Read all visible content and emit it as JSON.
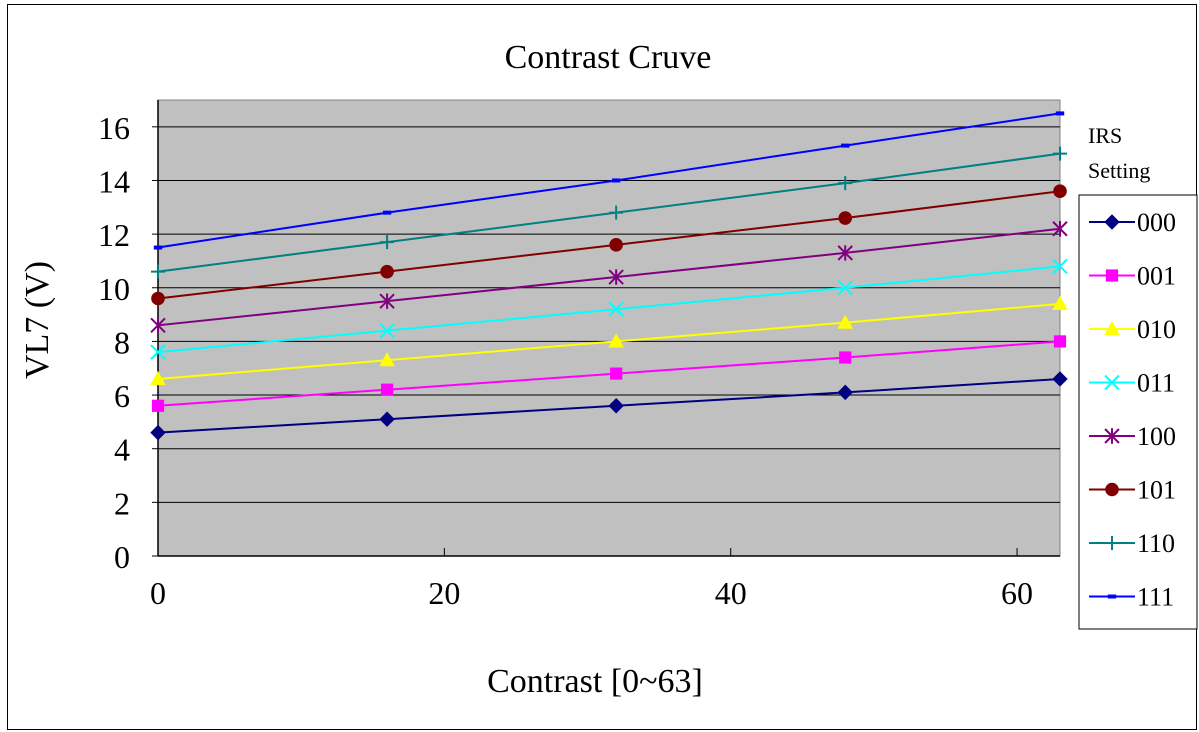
{
  "chart_data": {
    "type": "line",
    "title": "Contrast Cruve",
    "xlabel": "Contrast [0~63]",
    "ylabel": "VL7 (V)",
    "xlim": [
      0,
      63
    ],
    "ylim": [
      0,
      17
    ],
    "xticks": [
      "0",
      "20",
      "40",
      "60"
    ],
    "yticks": [
      "0",
      "2",
      "4",
      "6",
      "8",
      "10",
      "12",
      "14",
      "16"
    ],
    "grid": "horizontal",
    "plot_background": "#c0c0c0",
    "legend": {
      "title_line1": "IRS",
      "title_line2": "Setting",
      "placement": "right"
    },
    "x": [
      0,
      16,
      32,
      48,
      63
    ],
    "series": [
      {
        "name": "000",
        "values": [
          4.6,
          5.1,
          5.6,
          6.1,
          6.6
        ],
        "color": "#000080",
        "marker": "diamond"
      },
      {
        "name": "001",
        "values": [
          5.6,
          6.2,
          6.8,
          7.4,
          8.0
        ],
        "color": "#ff00ff",
        "marker": "square"
      },
      {
        "name": "010",
        "values": [
          6.6,
          7.3,
          8.0,
          8.7,
          9.4
        ],
        "color": "#ffff00",
        "marker": "triangle"
      },
      {
        "name": "011",
        "values": [
          7.6,
          8.4,
          9.2,
          10.0,
          10.8
        ],
        "color": "#00ffff",
        "marker": "x"
      },
      {
        "name": "100",
        "values": [
          8.6,
          9.5,
          10.4,
          11.3,
          12.2
        ],
        "color": "#800080",
        "marker": "star"
      },
      {
        "name": "101",
        "values": [
          9.6,
          10.6,
          11.6,
          12.6,
          13.6
        ],
        "color": "#800000",
        "marker": "circle"
      },
      {
        "name": "110",
        "values": [
          10.6,
          11.7,
          12.8,
          13.9,
          15.0
        ],
        "color": "#008080",
        "marker": "plus"
      },
      {
        "name": "111",
        "values": [
          11.5,
          12.8,
          14.0,
          15.3,
          16.5
        ],
        "color": "#0000ff",
        "marker": "dash"
      }
    ]
  }
}
